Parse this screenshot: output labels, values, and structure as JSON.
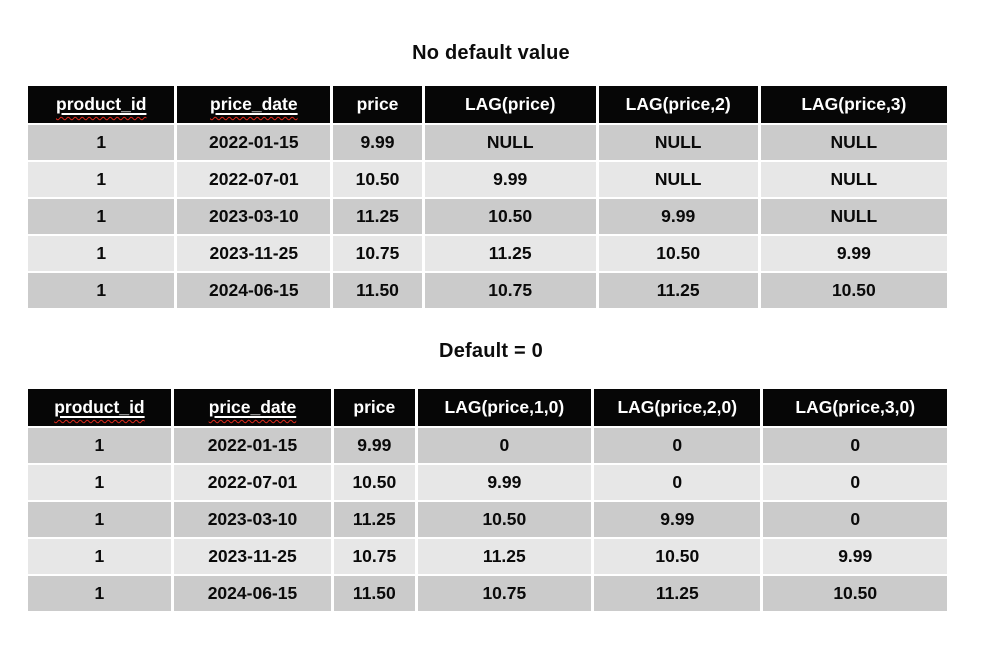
{
  "colors": {
    "page_background": "#ffffff",
    "header_background": "#060606",
    "header_text": "#ffffff",
    "row_dark": "#cbcbcb",
    "row_light": "#e7e7e7",
    "cell_text": "#0a0a0a",
    "spellcheck_squiggle": "#e02b1d"
  },
  "sections": [
    {
      "title": "No default value",
      "table": {
        "columns": [
          {
            "label": "product_id",
            "spellcheck": true
          },
          {
            "label": "price_date",
            "spellcheck": true
          },
          {
            "label": "price",
            "spellcheck": false
          },
          {
            "label": "LAG(price)",
            "spellcheck": false
          },
          {
            "label": "LAG(price,2)",
            "spellcheck": false
          },
          {
            "label": "LAG(price,3)",
            "spellcheck": false
          }
        ],
        "rows": [
          [
            "1",
            "2022-01-15",
            "9.99",
            "NULL",
            "NULL",
            "NULL"
          ],
          [
            "1",
            "2022-07-01",
            "10.50",
            "9.99",
            "NULL",
            "NULL"
          ],
          [
            "1",
            "2023-03-10",
            "11.25",
            "10.50",
            "9.99",
            "NULL"
          ],
          [
            "1",
            "2023-11-25",
            "10.75",
            "11.25",
            "10.50",
            "9.99"
          ],
          [
            "1",
            "2024-06-15",
            "11.50",
            "10.75",
            "11.25",
            "10.50"
          ]
        ]
      }
    },
    {
      "title": "Default = 0",
      "table": {
        "columns": [
          {
            "label": "product_id",
            "spellcheck": true
          },
          {
            "label": "price_date",
            "spellcheck": true
          },
          {
            "label": "price",
            "spellcheck": false
          },
          {
            "label": "LAG(price,1,0)",
            "spellcheck": false
          },
          {
            "label": "LAG(price,2,0)",
            "spellcheck": false
          },
          {
            "label": "LAG(price,3,0)",
            "spellcheck": false
          }
        ],
        "rows": [
          [
            "1",
            "2022-01-15",
            "9.99",
            "0",
            "0",
            "0"
          ],
          [
            "1",
            "2022-07-01",
            "10.50",
            "9.99",
            "0",
            "0"
          ],
          [
            "1",
            "2023-03-10",
            "11.25",
            "10.50",
            "9.99",
            "0"
          ],
          [
            "1",
            "2023-11-25",
            "10.75",
            "11.25",
            "10.50",
            "9.99"
          ],
          [
            "1",
            "2024-06-15",
            "11.50",
            "10.75",
            "11.25",
            "10.50"
          ]
        ]
      }
    }
  ]
}
